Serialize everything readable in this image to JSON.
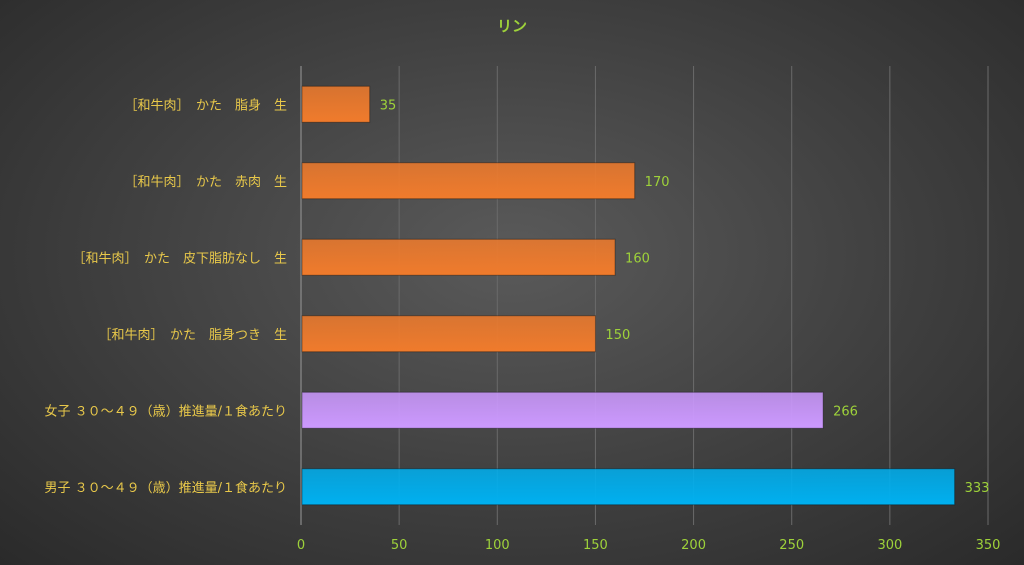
{
  "chart_data": {
    "type": "bar",
    "orientation": "horizontal",
    "title": "リン",
    "categories": [
      "［和牛肉］　かた　脂身　生",
      "［和牛肉］　かた　赤肉　生",
      "［和牛肉］　かた　皮下脂肪なし　生",
      "［和牛肉］　かた　脂身つき　生",
      "女子 ３０～４９（歳）推進量/１食あたり",
      "男子 ３０～４９（歳）推進量/１食あたり"
    ],
    "values": [
      35,
      170,
      160,
      150,
      266,
      333
    ],
    "bar_colors": [
      "#f07b2c",
      "#f07b2c",
      "#f07b2c",
      "#f07b2c",
      "#cc99ff",
      "#00b0f0"
    ],
    "xlim": [
      0,
      350
    ],
    "xticks": [
      0,
      50,
      100,
      150,
      200,
      250,
      300,
      350
    ],
    "grid": true,
    "xlabel": "",
    "ylabel": ""
  }
}
